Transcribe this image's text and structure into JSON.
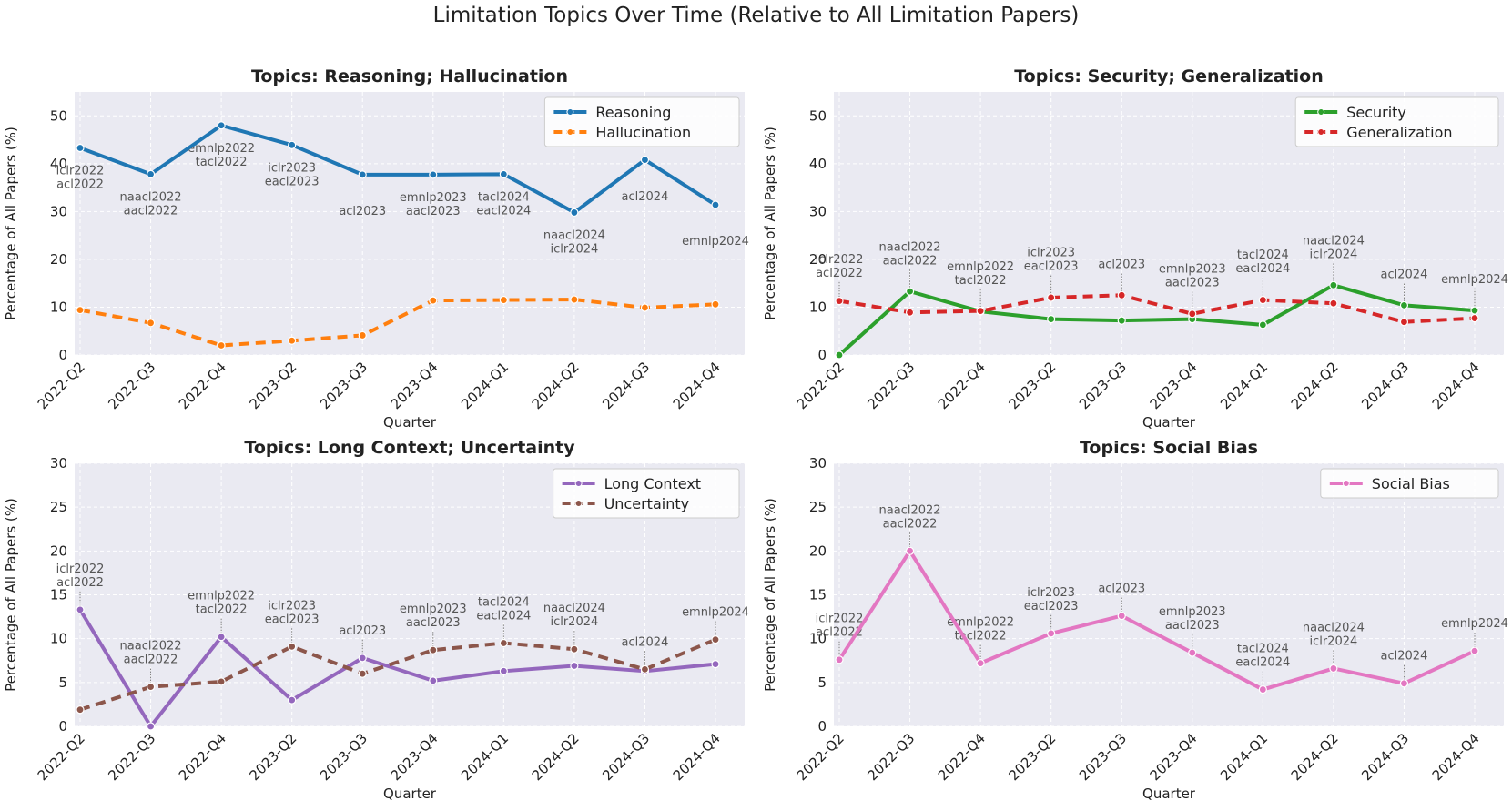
{
  "figure": {
    "title": "Limitation Topics Over Time (Relative to All Limitation Papers)"
  },
  "chart_data": [
    {
      "type": "line",
      "title": "Topics: Reasoning; Hallucination",
      "xlabel": "Quarter",
      "ylabel": "Percentage of All Papers (%)",
      "categories": [
        "2022-Q2",
        "2022-Q3",
        "2022-Q4",
        "2023-Q2",
        "2023-Q3",
        "2023-Q4",
        "2024-Q1",
        "2024-Q2",
        "2024-Q3",
        "2024-Q4"
      ],
      "ylim": [
        0,
        55
      ],
      "yticks": [
        0,
        10,
        20,
        30,
        40,
        50
      ],
      "grid": true,
      "legend_position": "top-right",
      "series": [
        {
          "name": "Reasoning",
          "color": "#1f77b4",
          "dash": "solid",
          "values": [
            43.3,
            37.8,
            48.0,
            43.9,
            37.7,
            37.7,
            37.8,
            29.8,
            40.8,
            31.4
          ]
        },
        {
          "name": "Hallucination",
          "color": "#ff7f0e",
          "dash": "dashed",
          "values": [
            9.4,
            6.7,
            2.0,
            3.0,
            4.1,
            11.4,
            11.5,
            11.6,
            9.9,
            10.6
          ]
        }
      ],
      "annotations": [
        {
          "category": "2022-Q2",
          "value": 34.5,
          "lines": [
            "iclr2022",
            "acl2022"
          ]
        },
        {
          "category": "2022-Q3",
          "value": 29.0,
          "lines": [
            "naacl2022",
            "aacl2022"
          ]
        },
        {
          "category": "2022-Q4",
          "value": 39.2,
          "lines": [
            "emnlp2022",
            "tacl2022"
          ]
        },
        {
          "category": "2023-Q2",
          "value": 35.1,
          "lines": [
            "iclr2023",
            "eacl2023"
          ]
        },
        {
          "category": "2023-Q3",
          "value": 28.9,
          "lines": [
            "acl2023"
          ]
        },
        {
          "category": "2023-Q4",
          "value": 28.9,
          "lines": [
            "emnlp2023",
            "aacl2023"
          ]
        },
        {
          "category": "2024-Q1",
          "value": 29.0,
          "lines": [
            "tacl2024",
            "eacl2024"
          ]
        },
        {
          "category": "2024-Q2",
          "value": 21.0,
          "lines": [
            "naacl2024",
            "iclr2024"
          ]
        },
        {
          "category": "2024-Q3",
          "value": 32.0,
          "lines": [
            "acl2024"
          ]
        },
        {
          "category": "2024-Q4",
          "value": 22.6,
          "lines": [
            "emnlp2024"
          ]
        }
      ]
    },
    {
      "type": "line",
      "title": "Topics: Security; Generalization",
      "xlabel": "Quarter",
      "ylabel": "Percentage of All Papers (%)",
      "categories": [
        "2022-Q2",
        "2022-Q3",
        "2022-Q4",
        "2023-Q2",
        "2023-Q3",
        "2023-Q4",
        "2024-Q1",
        "2024-Q2",
        "2024-Q3",
        "2024-Q4"
      ],
      "ylim": [
        0,
        55
      ],
      "yticks": [
        0,
        10,
        20,
        30,
        40,
        50
      ],
      "grid": true,
      "legend_position": "top-right",
      "series": [
        {
          "name": "Security",
          "color": "#2ca02c",
          "dash": "solid",
          "values": [
            0.0,
            13.3,
            9.1,
            7.5,
            7.2,
            7.5,
            6.3,
            14.6,
            10.4,
            9.3
          ]
        },
        {
          "name": "Generalization",
          "color": "#d62728",
          "dash": "dashed",
          "values": [
            11.3,
            8.9,
            9.2,
            12.0,
            12.5,
            8.6,
            11.5,
            10.8,
            6.9,
            7.7
          ]
        }
      ],
      "annotations": [
        {
          "category": "2022-Q2",
          "value": 16.0,
          "lines": [
            "iclr2022",
            "acl2022"
          ]
        },
        {
          "category": "2022-Q3",
          "value": 18.6,
          "lines": [
            "naacl2022",
            "aacl2022"
          ]
        },
        {
          "category": "2022-Q4",
          "value": 14.5,
          "lines": [
            "emnlp2022",
            "tacl2022"
          ]
        },
        {
          "category": "2023-Q2",
          "value": 17.4,
          "lines": [
            "iclr2023",
            "eacl2023"
          ]
        },
        {
          "category": "2023-Q3",
          "value": 17.8,
          "lines": [
            "acl2023"
          ]
        },
        {
          "category": "2023-Q4",
          "value": 14.0,
          "lines": [
            "emnlp2023",
            "aacl2023"
          ]
        },
        {
          "category": "2024-Q1",
          "value": 16.9,
          "lines": [
            "tacl2024",
            "eacl2024"
          ]
        },
        {
          "category": "2024-Q2",
          "value": 19.9,
          "lines": [
            "naacl2024",
            "iclr2024"
          ]
        },
        {
          "category": "2024-Q3",
          "value": 15.7,
          "lines": [
            "acl2024"
          ]
        },
        {
          "category": "2024-Q4",
          "value": 14.7,
          "lines": [
            "emnlp2024"
          ]
        }
      ]
    },
    {
      "type": "line",
      "title": "Topics: Long Context; Uncertainty",
      "xlabel": "Quarter",
      "ylabel": "Percentage of All Papers (%)",
      "categories": [
        "2022-Q2",
        "2022-Q3",
        "2022-Q4",
        "2023-Q2",
        "2023-Q3",
        "2023-Q4",
        "2024-Q1",
        "2024-Q2",
        "2024-Q3",
        "2024-Q4"
      ],
      "ylim": [
        0,
        30
      ],
      "yticks": [
        0,
        5,
        10,
        15,
        20,
        25,
        30
      ],
      "grid": true,
      "legend_position": "top-right",
      "series": [
        {
          "name": "Long Context",
          "color": "#9467bd",
          "dash": "solid",
          "values": [
            13.3,
            0.0,
            10.2,
            3.0,
            7.8,
            5.2,
            6.3,
            6.9,
            6.3,
            7.1
          ]
        },
        {
          "name": "Uncertainty",
          "color": "#8c564b",
          "dash": "dashed",
          "values": [
            1.9,
            4.5,
            5.1,
            9.1,
            6.0,
            8.7,
            9.5,
            8.8,
            6.5,
            9.9
          ]
        }
      ],
      "annotations": [
        {
          "category": "2022-Q2",
          "value": 15.8,
          "lines": [
            "iclr2022",
            "acl2022"
          ]
        },
        {
          "category": "2022-Q3",
          "value": 7.0,
          "lines": [
            "naacl2022",
            "aacl2022"
          ]
        },
        {
          "category": "2022-Q4",
          "value": 12.7,
          "lines": [
            "emnlp2022",
            "tacl2022"
          ]
        },
        {
          "category": "2023-Q2",
          "value": 11.6,
          "lines": [
            "iclr2023",
            "eacl2023"
          ]
        },
        {
          "category": "2023-Q3",
          "value": 10.3,
          "lines": [
            "acl2023"
          ]
        },
        {
          "category": "2023-Q4",
          "value": 11.2,
          "lines": [
            "emnlp2023",
            "aacl2023"
          ]
        },
        {
          "category": "2024-Q1",
          "value": 12.0,
          "lines": [
            "tacl2024",
            "eacl2024"
          ]
        },
        {
          "category": "2024-Q2",
          "value": 11.3,
          "lines": [
            "naacl2024",
            "iclr2024"
          ]
        },
        {
          "category": "2024-Q3",
          "value": 9.0,
          "lines": [
            "acl2024"
          ]
        },
        {
          "category": "2024-Q4",
          "value": 12.4,
          "lines": [
            "emnlp2024"
          ]
        }
      ]
    },
    {
      "type": "line",
      "title": "Topics: Social Bias",
      "xlabel": "Quarter",
      "ylabel": "Percentage of All Papers (%)",
      "categories": [
        "2022-Q2",
        "2022-Q3",
        "2022-Q4",
        "2023-Q2",
        "2023-Q3",
        "2023-Q4",
        "2024-Q1",
        "2024-Q2",
        "2024-Q3",
        "2024-Q4"
      ],
      "ylim": [
        0,
        30
      ],
      "yticks": [
        0,
        5,
        10,
        15,
        20,
        25,
        30
      ],
      "grid": true,
      "legend_position": "top-right",
      "series": [
        {
          "name": "Social Bias",
          "color": "#e377c2",
          "dash": "solid",
          "values": [
            7.6,
            20.0,
            7.2,
            10.6,
            12.6,
            8.4,
            4.2,
            6.6,
            4.9,
            8.6
          ]
        }
      ],
      "annotations": [
        {
          "category": "2022-Q2",
          "value": 10.1,
          "lines": [
            "iclr2022",
            "acl2022"
          ]
        },
        {
          "category": "2022-Q3",
          "value": 22.5,
          "lines": [
            "naacl2022",
            "aacl2022"
          ]
        },
        {
          "category": "2022-Q4",
          "value": 9.7,
          "lines": [
            "emnlp2022",
            "tacl2022"
          ]
        },
        {
          "category": "2023-Q2",
          "value": 13.1,
          "lines": [
            "iclr2023",
            "eacl2023"
          ]
        },
        {
          "category": "2023-Q3",
          "value": 15.1,
          "lines": [
            "acl2023"
          ]
        },
        {
          "category": "2023-Q4",
          "value": 10.9,
          "lines": [
            "emnlp2023",
            "aacl2023"
          ]
        },
        {
          "category": "2024-Q1",
          "value": 6.7,
          "lines": [
            "tacl2024",
            "eacl2024"
          ]
        },
        {
          "category": "2024-Q2",
          "value": 9.1,
          "lines": [
            "naacl2024",
            "iclr2024"
          ]
        },
        {
          "category": "2024-Q3",
          "value": 7.4,
          "lines": [
            "acl2024"
          ]
        },
        {
          "category": "2024-Q4",
          "value": 11.1,
          "lines": [
            "emnlp2024"
          ]
        }
      ]
    }
  ]
}
